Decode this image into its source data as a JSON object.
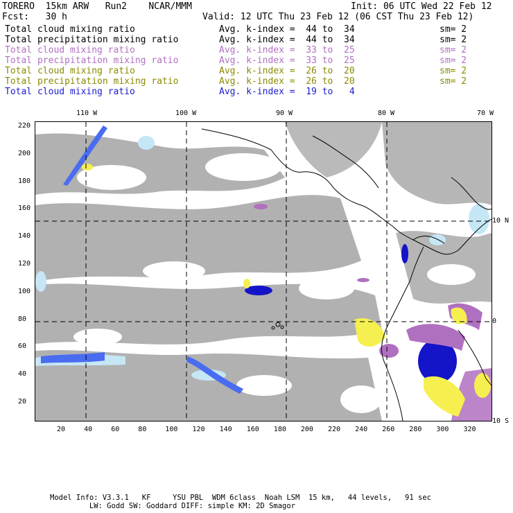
{
  "header": {
    "line1_left": "TORERO  15km ARW   Run2    NCAR/MMM",
    "line1_right": "Init: 06 UTC Wed 22 Feb 12",
    "line2_left": "Fcst:   30 h",
    "line2_right": "Valid: 12 UTC Thu 23 Feb 12 (06 CST Thu 23 Feb 12)"
  },
  "legend": [
    {
      "field": "Total cloud mixing ratio",
      "avg": "Avg. k-index =  44 to  34",
      "sm": "sm= 2",
      "color": "#000000"
    },
    {
      "field": "Total precipitation mixing ratio",
      "avg": "Avg. k-index =  44 to  34",
      "sm": "sm= 2",
      "color": "#000000"
    },
    {
      "field": "Total cloud mixing ratio",
      "avg": "Avg. k-index =  33 to  25",
      "sm": "sm= 2",
      "color": "#b070c0"
    },
    {
      "field": "Total precipitation mixing ratio",
      "avg": "Avg. k-index =  33 to  25",
      "sm": "sm= 2",
      "color": "#b070c0"
    },
    {
      "field": "Total cloud mixing ratio",
      "avg": "Avg. k-index =  26 to  20",
      "sm": "sm= 2",
      "color": "#8a8a00"
    },
    {
      "field": "Total precipitation mixing ratio",
      "avg": "Avg. k-index =  26 to  20",
      "sm": "sm= 2",
      "color": "#8a8a00"
    },
    {
      "field": "Total cloud mixing ratio",
      "avg": "Avg. k-index =  19 to   4",
      "sm": "",
      "color": "#1a1ad0"
    }
  ],
  "axes": {
    "top_lon_labels": [
      "110 W",
      "100 W",
      "90 W",
      "80 W",
      "70 W"
    ],
    "right_lat_labels": [
      "10 N",
      "0",
      "10 S"
    ],
    "left_y_ticks": [
      "220",
      "200",
      "180",
      "160",
      "140",
      "120",
      "100",
      "80",
      "60",
      "40",
      "20"
    ],
    "bottom_x_ticks": [
      "20",
      "40",
      "60",
      "80",
      "100",
      "120",
      "140",
      "160",
      "180",
      "200",
      "220",
      "240",
      "260",
      "280",
      "300",
      "320"
    ]
  },
  "colors": {
    "cloud_gray": "#a9a9a9",
    "light_blue": "#c5e6f5",
    "mid_blue": "#4a6cf0",
    "dark_blue": "#1414c8",
    "purple": "#b070c0",
    "yellow": "#f5f050"
  },
  "footer": {
    "line1": "Model Info: V3.3.1   KF     YSU PBL  WDM 6class  Noah LSM  15 km,   44 levels,   91 sec",
    "line2": "         LW: Godd SW: Goddard DIFF: simple KM: 2D Smagor"
  }
}
